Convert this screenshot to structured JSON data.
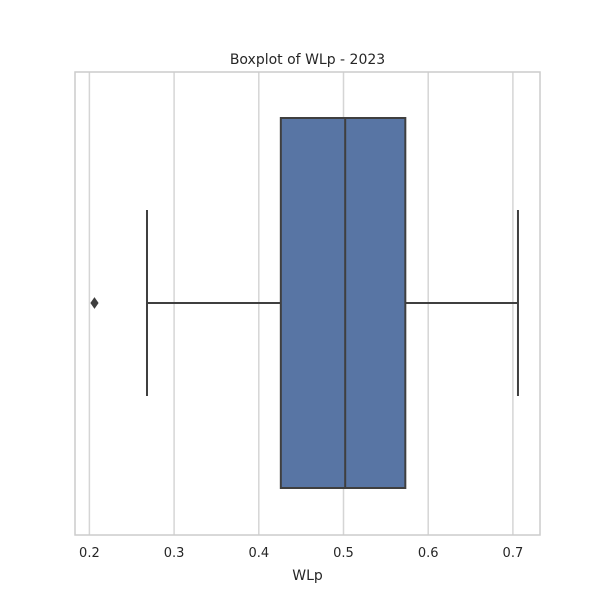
{
  "chart_data": {
    "type": "boxplot",
    "title": "Boxplot of WLp - 2023",
    "xlabel": "WLp",
    "ylabel": "",
    "orientation": "horizontal",
    "xlim": [
      0.183,
      0.732
    ],
    "xticks": [
      0.2,
      0.3,
      0.4,
      0.5,
      0.6,
      0.7
    ],
    "xtick_labels": [
      "0.2",
      "0.3",
      "0.4",
      "0.5",
      "0.6",
      "0.7"
    ],
    "grid": "vertical",
    "box": {
      "whisker_low": 0.268,
      "q1": 0.426,
      "median": 0.502,
      "q3": 0.573,
      "whisker_high": 0.706,
      "outliers": [
        0.206
      ]
    },
    "colors": {
      "box_fill": "#5875a4",
      "line": "#3f3f3f",
      "grid": "#d5d5d5",
      "frame": "#cccccc",
      "text": "#262626"
    }
  }
}
